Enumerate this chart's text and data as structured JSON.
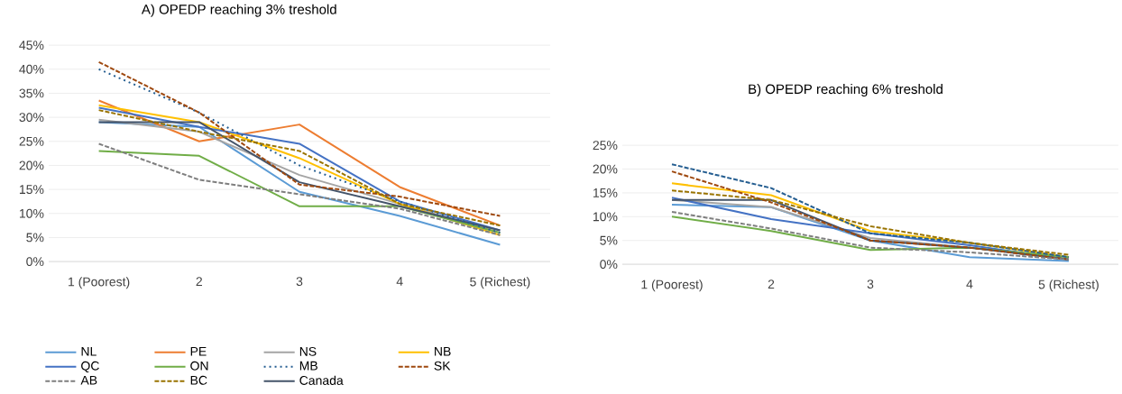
{
  "chart_data": [
    {
      "type": "line",
      "title": "A) OPEDP reaching 3% treshold",
      "categories": [
        "1 (Poorest)",
        "2",
        "3",
        "4",
        "5 (Richest)"
      ],
      "ylim": [
        0,
        45
      ],
      "yticks": [
        {
          "value": 0,
          "label": "0%"
        },
        {
          "value": 5,
          "label": "5%"
        },
        {
          "value": 10,
          "label": "10%"
        },
        {
          "value": 15,
          "label": "15%"
        },
        {
          "value": 20,
          "label": "20%"
        },
        {
          "value": 25,
          "label": "25%"
        },
        {
          "value": 30,
          "label": "30%"
        },
        {
          "value": 35,
          "label": "35%"
        },
        {
          "value": 40,
          "label": "40%"
        },
        {
          "value": 45,
          "label": "45%"
        }
      ],
      "grid": "y",
      "legend": "bottom",
      "marker": "none",
      "series": [
        {
          "name": "NL",
          "color": "#5b9bd5",
          "line_style": "solid",
          "values": [
            29,
            28,
            14.5,
            9.5,
            3.5
          ]
        },
        {
          "name": "PE",
          "color": "#ed7d31",
          "line_style": "solid",
          "values": [
            33.5,
            25,
            28.5,
            15.5,
            7.5
          ]
        },
        {
          "name": "NS",
          "color": "#a5a5a5",
          "line_style": "solid",
          "values": [
            29.5,
            27,
            18,
            12,
            6
          ]
        },
        {
          "name": "NB",
          "color": "#ffc000",
          "line_style": "solid",
          "values": [
            32.5,
            29,
            21.5,
            12,
            5.5
          ]
        },
        {
          "name": "QC",
          "color": "#4472c4",
          "line_style": "solid",
          "values": [
            32,
            28,
            24.5,
            12.5,
            6.5
          ]
        },
        {
          "name": "ON",
          "color": "#70ad47",
          "line_style": "solid",
          "values": [
            23,
            22,
            11.5,
            11.5,
            6
          ]
        },
        {
          "name": "MB",
          "color": "#255e91",
          "line_style": "dotted",
          "values": [
            40,
            31,
            20,
            12.5,
            6
          ]
        },
        {
          "name": "SK",
          "color": "#9e480e",
          "line_style": "dashed",
          "values": [
            41.5,
            31,
            16,
            13.5,
            9.5
          ]
        },
        {
          "name": "AB",
          "color": "#7f7f7f",
          "line_style": "dashed",
          "values": [
            24.5,
            17,
            14,
            11,
            5.5
          ]
        },
        {
          "name": "BC",
          "color": "#997300",
          "line_style": "dashed",
          "values": [
            31.5,
            27,
            23,
            12,
            7.5
          ]
        },
        {
          "name": "Canada",
          "color": "#44546a",
          "line_style": "solid",
          "values": [
            29,
            29,
            16.5,
            11.5,
            6.5
          ]
        }
      ]
    },
    {
      "type": "line",
      "title": "B) OPEDP reaching 6% treshold",
      "categories": [
        "1 (Poorest)",
        "2",
        "3",
        "4",
        "5 (Richest)"
      ],
      "ylim": [
        0,
        25
      ],
      "yticks": [
        {
          "value": 0,
          "label": "0%"
        },
        {
          "value": 5,
          "label": "5%"
        },
        {
          "value": 10,
          "label": "10%"
        },
        {
          "value": 15,
          "label": "15%"
        },
        {
          "value": 20,
          "label": "20%"
        },
        {
          "value": 25,
          "label": "25%"
        }
      ],
      "grid": "y",
      "marker": "none",
      "series": [
        {
          "color": "#5b9bd5",
          "line_style": "solid",
          "values": [
            12.5,
            12,
            5,
            1.5,
            0.7
          ]
        },
        {
          "color": "#a5a5a5",
          "line_style": "solid",
          "values": [
            13.5,
            12,
            5.5,
            3.5,
            1
          ]
        },
        {
          "color": "#ffc000",
          "line_style": "solid",
          "values": [
            17,
            14.5,
            7,
            4.5,
            1.5
          ]
        },
        {
          "color": "#4472c4",
          "line_style": "solid",
          "values": [
            14,
            9.5,
            6.5,
            4,
            1
          ]
        },
        {
          "color": "#70ad47",
          "line_style": "solid",
          "values": [
            10,
            7,
            3,
            3.5,
            1.5
          ]
        },
        {
          "color": "#255e91",
          "line_style": "dashed",
          "values": [
            21,
            16,
            6.5,
            4.5,
            1.5
          ]
        },
        {
          "color": "#9e480e",
          "line_style": "dashed",
          "values": [
            19.5,
            13,
            5,
            3.5,
            1
          ]
        },
        {
          "color": "#7f7f7f",
          "line_style": "dashed",
          "values": [
            11,
            7.5,
            3.5,
            2.5,
            1
          ]
        },
        {
          "color": "#997300",
          "line_style": "dashed",
          "values": [
            15.5,
            13.5,
            8,
            4.5,
            2
          ]
        },
        {
          "color": "#44546a",
          "line_style": "solid",
          "values": [
            13.5,
            13.5,
            5,
            3.5,
            1
          ]
        }
      ]
    }
  ]
}
